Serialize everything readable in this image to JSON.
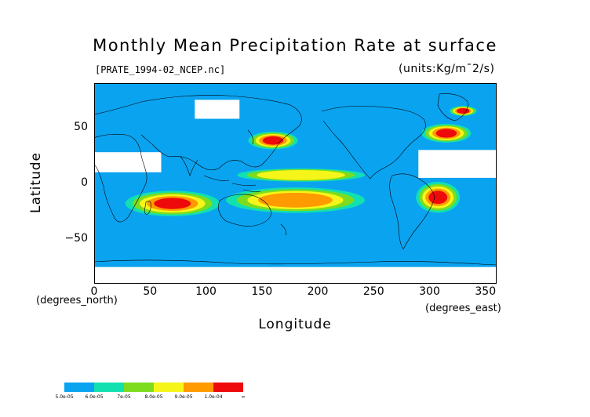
{
  "title": "Monthly Mean Precipitation Rate at surface",
  "subtitle_file": "[PRATE_1994-02_NCEP.nc]",
  "subtitle_units": "(units:Kg/m¯2/s)",
  "axes": {
    "y_title": "Latitude",
    "y_unit": "(degrees_north)",
    "x_title": "Longitude",
    "x_unit": "(degrees_east)",
    "x_ticks": [
      "0",
      "50",
      "100",
      "150",
      "200",
      "250",
      "300",
      "350"
    ],
    "x_tick_values": [
      0,
      50,
      100,
      150,
      200,
      250,
      300,
      350
    ],
    "y_ticks": [
      "50",
      "0",
      "−50"
    ],
    "y_tick_values": [
      50,
      0,
      -50
    ],
    "lon_range": [
      0,
      360
    ],
    "lat_range": [
      -90,
      90
    ]
  },
  "colors": {
    "ocean_base": "#0aa3f0",
    "missing": "#ffffff",
    "coast": "#000000"
  },
  "legend": {
    "labels": [
      "5.0e-05",
      "6.0e-05",
      "7e-05",
      "8.0e-05",
      "9.0e-05",
      "1.0e-04",
      "∞"
    ],
    "bins": [
      {
        "from": 5e-05,
        "to": 6e-05,
        "color": "#0aa3f0"
      },
      {
        "from": 6e-05,
        "to": 7e-05,
        "color": "#12e0b0"
      },
      {
        "from": 7e-05,
        "to": 8e-05,
        "color": "#7ddc1e"
      },
      {
        "from": 8e-05,
        "to": 9e-05,
        "color": "#f5f51a"
      },
      {
        "from": 9e-05,
        "to": 0.0001,
        "color": "#ff9a00"
      },
      {
        "from": 0.0001,
        "to": null,
        "color": "#ee0a0a"
      }
    ]
  },
  "chart_data": {
    "type": "heatmap",
    "title": "Monthly Mean Precipitation Rate at surface",
    "xlabel": "Longitude",
    "ylabel": "Latitude",
    "xlim": [
      0,
      360
    ],
    "ylim": [
      -90,
      90
    ],
    "grid": false,
    "precip_regions": [
      {
        "lon": [
          30,
          110
        ],
        "lat": [
          -28,
          -8
        ],
        "level": 6
      },
      {
        "lon": [
          120,
          240
        ],
        "lat": [
          -25,
          -5
        ],
        "level": 5
      },
      {
        "lon": [
          130,
          240
        ],
        "lat": [
          3,
          12
        ],
        "level": 4
      },
      {
        "lon": [
          140,
          180
        ],
        "lat": [
          32,
          45
        ],
        "level": 6
      },
      {
        "lon": [
          295,
          335
        ],
        "lat": [
          38,
          52
        ],
        "level": 6
      },
      {
        "lon": [
          290,
          325
        ],
        "lat": [
          -25,
          0
        ],
        "level": 6
      },
      {
        "lon": [
          320,
          340
        ],
        "lat": [
          62,
          68
        ],
        "level": 6
      }
    ],
    "missing_regions": [
      {
        "lon": [
          0,
          60
        ],
        "lat": [
          10,
          28
        ]
      },
      {
        "lon": [
          290,
          360
        ],
        "lat": [
          5,
          30
        ]
      },
      {
        "lon": [
          0,
          360
        ],
        "lat": [
          -90,
          -75
        ]
      },
      {
        "lon": [
          90,
          130
        ],
        "lat": [
          58,
          75
        ]
      }
    ]
  }
}
